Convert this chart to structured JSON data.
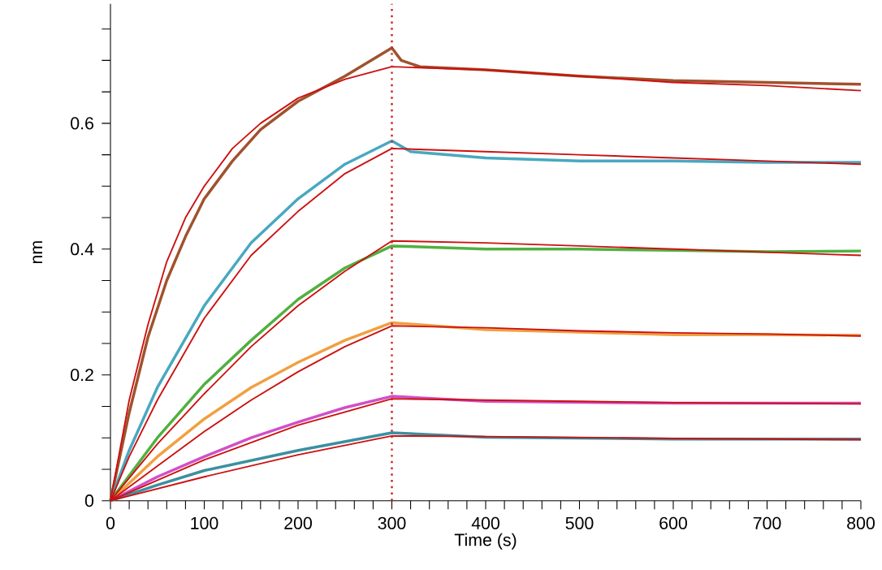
{
  "chart_data": {
    "type": "line",
    "xlabel": "Time (s)",
    "ylabel": "nm",
    "xlim": [
      0,
      800
    ],
    "ylim": [
      0,
      0.79
    ],
    "xticks": [
      0,
      {
        "value": 20,
        "label": null
      },
      {
        "value": 40,
        "label": null
      },
      {
        "value": 60,
        "label": null
      },
      {
        "value": 80,
        "label": null
      },
      100,
      {
        "value": 120,
        "label": null
      },
      {
        "value": 140,
        "label": null
      },
      {
        "value": 160,
        "label": null
      },
      {
        "value": 180,
        "label": null
      },
      200,
      {
        "value": 220,
        "label": null
      },
      {
        "value": 240,
        "label": null
      },
      {
        "value": 260,
        "label": null
      },
      {
        "value": 280,
        "label": null
      },
      300,
      {
        "value": 320,
        "label": null
      },
      {
        "value": 340,
        "label": null
      },
      {
        "value": 360,
        "label": null
      },
      {
        "value": 380,
        "label": null
      },
      400,
      {
        "value": 420,
        "label": null
      },
      {
        "value": 440,
        "label": null
      },
      {
        "value": 460,
        "label": null
      },
      {
        "value": 480,
        "label": null
      },
      500,
      {
        "value": 520,
        "label": null
      },
      {
        "value": 540,
        "label": null
      },
      {
        "value": 560,
        "label": null
      },
      {
        "value": 580,
        "label": null
      },
      600,
      {
        "value": 620,
        "label": null
      },
      {
        "value": 640,
        "label": null
      },
      {
        "value": 660,
        "label": null
      },
      {
        "value": 680,
        "label": null
      },
      700,
      {
        "value": 720,
        "label": null
      },
      {
        "value": 740,
        "label": null
      },
      {
        "value": 760,
        "label": null
      },
      {
        "value": 780,
        "label": null
      },
      800
    ],
    "yticks": [
      0,
      {
        "value": 0.05,
        "label": null
      },
      {
        "value": 0.1,
        "label": null
      },
      {
        "value": 0.15,
        "label": null
      },
      0.2,
      {
        "value": 0.25,
        "label": null
      },
      {
        "value": 0.3,
        "label": null
      },
      {
        "value": 0.35,
        "label": null
      },
      0.4,
      {
        "value": 0.45,
        "label": null
      },
      {
        "value": 0.5,
        "label": null
      },
      {
        "value": 0.55,
        "label": null
      },
      0.6,
      {
        "value": 0.65,
        "label": null
      },
      {
        "value": 0.7,
        "label": null
      },
      {
        "value": 0.75,
        "label": null
      }
    ],
    "grid": false,
    "marker": "none",
    "line_style": "solid",
    "ref_lines": [
      {
        "axis": "x",
        "value": 300,
        "color": "#cc2020",
        "line_style": "dotted"
      }
    ],
    "series": [
      {
        "color": "#a0522d",
        "x": [
          0,
          20,
          40,
          60,
          80,
          100,
          130,
          160,
          200,
          250,
          300,
          310,
          330,
          400,
          500,
          600,
          700,
          800
        ],
        "values": [
          0,
          0.14,
          0.26,
          0.35,
          0.42,
          0.48,
          0.54,
          0.59,
          0.635,
          0.675,
          0.72,
          0.7,
          0.69,
          0.685,
          0.675,
          0.668,
          0.665,
          0.662
        ]
      },
      {
        "color": "#48a8c0",
        "x": [
          0,
          20,
          50,
          100,
          150,
          200,
          250,
          300,
          320,
          400,
          500,
          600,
          700,
          800
        ],
        "values": [
          0,
          0.08,
          0.18,
          0.31,
          0.41,
          0.48,
          0.535,
          0.572,
          0.555,
          0.545,
          0.54,
          0.54,
          0.538,
          0.538
        ]
      },
      {
        "color": "#50b040",
        "x": [
          0,
          50,
          100,
          150,
          200,
          250,
          300,
          400,
          500,
          600,
          700,
          800
        ],
        "values": [
          0,
          0.1,
          0.185,
          0.255,
          0.32,
          0.37,
          0.405,
          0.4,
          0.4,
          0.398,
          0.396,
          0.397
        ]
      },
      {
        "color": "#f0a040",
        "x": [
          0,
          50,
          100,
          150,
          200,
          250,
          300,
          400,
          500,
          600,
          700,
          800
        ],
        "values": [
          0,
          0.07,
          0.13,
          0.18,
          0.22,
          0.255,
          0.283,
          0.272,
          0.268,
          0.264,
          0.264,
          0.263
        ]
      },
      {
        "color": "#d050c8",
        "x": [
          0,
          50,
          100,
          150,
          200,
          250,
          300,
          400,
          600,
          800
        ],
        "values": [
          0,
          0.038,
          0.07,
          0.1,
          0.125,
          0.148,
          0.166,
          0.158,
          0.155,
          0.155
        ]
      },
      {
        "color": "#3a90a0",
        "x": [
          0,
          50,
          100,
          200,
          300,
          400,
          600,
          800
        ],
        "values": [
          0,
          0.025,
          0.048,
          0.08,
          0.108,
          0.101,
          0.098,
          0.098
        ]
      },
      {
        "color": "#cc1010",
        "x": [
          0,
          20,
          40,
          60,
          80,
          100,
          130,
          160,
          200,
          250,
          300,
          400,
          500,
          600,
          700,
          800
        ],
        "values": [
          0,
          0.16,
          0.28,
          0.38,
          0.45,
          0.5,
          0.56,
          0.6,
          0.64,
          0.67,
          0.69,
          0.685,
          0.675,
          0.665,
          0.66,
          0.652
        ]
      },
      {
        "color": "#cc1010",
        "x": [
          0,
          20,
          50,
          100,
          150,
          200,
          250,
          300,
          400,
          500,
          600,
          700,
          800
        ],
        "values": [
          0,
          0.07,
          0.16,
          0.29,
          0.39,
          0.46,
          0.52,
          0.56,
          0.555,
          0.55,
          0.545,
          0.54,
          0.535
        ]
      },
      {
        "color": "#cc1010",
        "x": [
          0,
          50,
          100,
          150,
          200,
          250,
          300,
          400,
          500,
          600,
          700,
          800
        ],
        "values": [
          0,
          0.09,
          0.17,
          0.245,
          0.31,
          0.365,
          0.413,
          0.41,
          0.405,
          0.4,
          0.395,
          0.39
        ]
      },
      {
        "color": "#cc1010",
        "x": [
          0,
          50,
          100,
          150,
          200,
          250,
          300,
          400,
          500,
          600,
          700,
          800
        ],
        "values": [
          0,
          0.055,
          0.11,
          0.16,
          0.205,
          0.245,
          0.278,
          0.275,
          0.27,
          0.267,
          0.265,
          0.262
        ]
      },
      {
        "color": "#cc1010",
        "x": [
          0,
          100,
          200,
          300,
          400,
          600,
          800
        ],
        "values": [
          0,
          0.065,
          0.12,
          0.162,
          0.16,
          0.156,
          0.154
        ]
      },
      {
        "color": "#cc1010",
        "x": [
          0,
          100,
          200,
          300,
          400,
          600,
          800
        ],
        "values": [
          0,
          0.038,
          0.073,
          0.103,
          0.102,
          0.099,
          0.097
        ]
      }
    ]
  }
}
